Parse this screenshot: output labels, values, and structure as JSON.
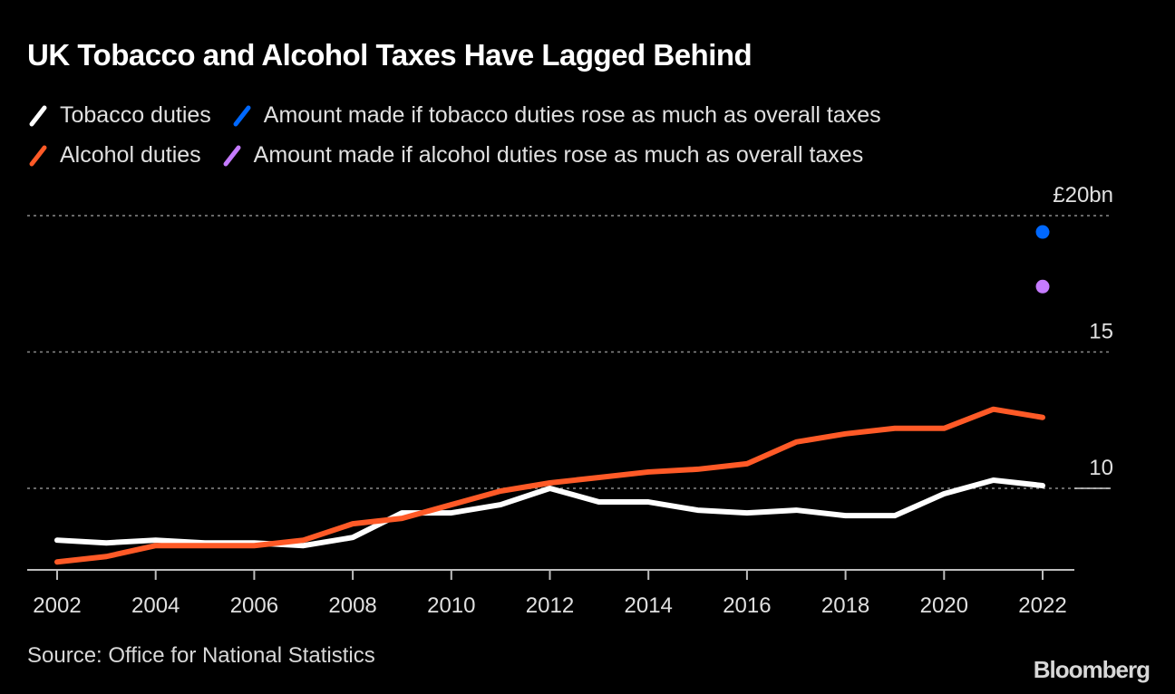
{
  "title": "UK Tobacco and Alcohol Taxes Have Lagged Behind",
  "legend": [
    {
      "label": "Tobacco duties",
      "color": "#ffffff",
      "icon": "slash-swatch"
    },
    {
      "label": "Amount made if tobacco duties rose as much as overall taxes",
      "color": "#0068ff",
      "icon": "slash-swatch"
    },
    {
      "label": "Alcohol duties",
      "color": "#ff5a27",
      "icon": "slash-swatch"
    },
    {
      "label": "Amount made if alcohol duties rose as much as overall taxes",
      "color": "#c57bff",
      "icon": "slash-swatch"
    }
  ],
  "source": "Source: Office for National Statistics",
  "brand": "Bloomberg",
  "chart_data": {
    "type": "line",
    "title": "UK Tobacco and Alcohol Taxes Have Lagged Behind",
    "xlabel": "",
    "ylabel": "",
    "x": [
      2002,
      2003,
      2004,
      2005,
      2006,
      2007,
      2008,
      2009,
      2010,
      2011,
      2012,
      2013,
      2014,
      2015,
      2016,
      2017,
      2018,
      2019,
      2020,
      2021,
      2022
    ],
    "xticks": [
      "2002",
      "2004",
      "2006",
      "2008",
      "2010",
      "2012",
      "2014",
      "2016",
      "2018",
      "2020",
      "2022"
    ],
    "yticks": [
      {
        "value": 10,
        "label": "10"
      },
      {
        "value": 15,
        "label": "15"
      },
      {
        "value": 20,
        "label": "£20bn"
      }
    ],
    "ylim": [
      7,
      20
    ],
    "xlim": [
      2001,
      2022.65
    ],
    "grid": true,
    "legend_position": "top-left",
    "series": [
      {
        "name": "Tobacco duties",
        "color": "#ffffff",
        "values": [
          8.1,
          8.0,
          8.1,
          8.0,
          8.0,
          7.9,
          8.2,
          9.1,
          9.1,
          9.4,
          10.0,
          9.5,
          9.5,
          9.2,
          9.1,
          9.2,
          9.0,
          9.0,
          9.8,
          10.3,
          10.1
        ]
      },
      {
        "name": "Alcohol duties",
        "color": "#ff5a27",
        "values": [
          7.3,
          7.5,
          7.9,
          7.9,
          7.9,
          8.1,
          8.7,
          8.9,
          9.4,
          9.9,
          10.2,
          10.4,
          10.6,
          10.7,
          10.9,
          11.7,
          12.0,
          12.2,
          12.2,
          12.9,
          12.6
        ]
      }
    ],
    "points": [
      {
        "name": "Amount made if tobacco duties rose as much as overall taxes",
        "x": 2022,
        "y": 19.4,
        "color": "#0068ff"
      },
      {
        "name": "Amount made if alcohol duties rose as much as overall taxes",
        "x": 2022,
        "y": 17.4,
        "color": "#c57bff"
      }
    ]
  }
}
